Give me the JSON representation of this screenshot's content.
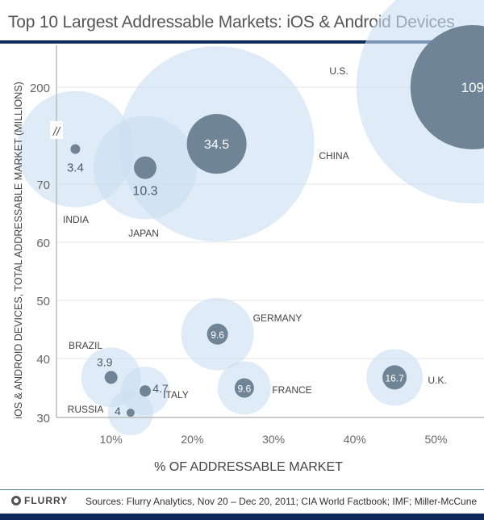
{
  "chart_data": {
    "type": "scatter",
    "title": "Top 10 Largest Addressable Markets: iOS & Android Devices",
    "xlabel": "% OF ADDRESSABLE MARKET",
    "ylabel": "iOS & ANDROID DEVICES, TOTAL ADDRESSABLE MARKET (MILLIONS)",
    "x_ticks": [
      "10%",
      "20%",
      "30%",
      "40%",
      "50%"
    ],
    "x_tick_values": [
      10,
      20,
      30,
      40,
      50
    ],
    "y_ticks": [
      "30",
      "40",
      "50",
      "60",
      "70",
      "200"
    ],
    "y_tick_values": [
      30,
      40,
      50,
      60,
      70,
      200
    ],
    "axis_break": "//",
    "bubble_label_meaning": "iOS & Android devices (millions)",
    "series": [
      {
        "name": "U.S.",
        "x": 54.5,
        "y": 200,
        "devices": "109"
      },
      {
        "name": "CHINA",
        "x": 23,
        "y": 124,
        "devices": "34.5"
      },
      {
        "name": "JAPAN",
        "x": 14.2,
        "y": 92,
        "devices": "10.3"
      },
      {
        "name": "INDIA",
        "x": 5.6,
        "y": 117,
        "devices": "3.4"
      },
      {
        "name": "GERMANY",
        "x": 23.1,
        "y": 44.2,
        "devices": "9.6"
      },
      {
        "name": "FRANCE",
        "x": 26.4,
        "y": 35,
        "devices": "9.6"
      },
      {
        "name": "U.K.",
        "x": 44.9,
        "y": 36.8,
        "devices": "16.7"
      },
      {
        "name": "BRAZIL",
        "x": 10,
        "y": 36.8,
        "devices": "3.9"
      },
      {
        "name": "ITALY",
        "x": 14.2,
        "y": 34.5,
        "devices": "4.7"
      },
      {
        "name": "RUSSIA",
        "x": 12.4,
        "y": 30.8,
        "devices": "4"
      }
    ],
    "colors": {
      "market": "#c9dff1",
      "devices": "#6f8597",
      "grid": "#e6e6e6"
    }
  },
  "footer": {
    "logo": "FLURRY",
    "source": "Sources: Flurry Analytics, Nov 20 – Dec 20, 2011; CIA World Factbook; IMF; Miller-McCune"
  }
}
